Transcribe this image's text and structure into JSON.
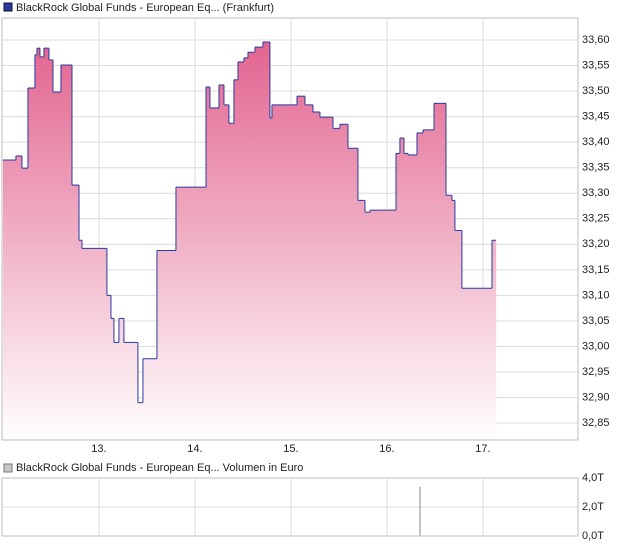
{
  "chart_data": [
    {
      "type": "step",
      "xlim": [
        11.99,
        17.99
      ],
      "xticks": [
        {
          "value": 13,
          "label": "13."
        },
        {
          "value": 14,
          "label": "14."
        },
        {
          "value": 15,
          "label": "15."
        },
        {
          "value": 16,
          "label": "16."
        },
        {
          "value": 17,
          "label": "17."
        }
      ],
      "ylim": [
        32.817,
        33.643
      ],
      "yticks": [
        {
          "value": 33.6,
          "label": "33,60"
        },
        {
          "value": 33.55,
          "label": "33,55"
        },
        {
          "value": 33.5,
          "label": "33,50"
        },
        {
          "value": 33.45,
          "label": "33,45"
        },
        {
          "value": 33.4,
          "label": "33,40"
        },
        {
          "value": 33.35,
          "label": "33,35"
        },
        {
          "value": 33.3,
          "label": "33,30"
        },
        {
          "value": 33.25,
          "label": "33,25"
        },
        {
          "value": 33.2,
          "label": "33,20"
        },
        {
          "value": 33.15,
          "label": "33,15"
        },
        {
          "value": 33.1,
          "label": "33,10"
        },
        {
          "value": 33.05,
          "label": "33,05"
        },
        {
          "value": 33.0,
          "label": "33,00"
        },
        {
          "value": 32.95,
          "label": "32,95"
        },
        {
          "value": 32.9,
          "label": "32,90"
        },
        {
          "value": 32.85,
          "label": "32,85"
        }
      ],
      "grid": true,
      "x": [
        12.0,
        12.135,
        12.198,
        12.26,
        12.333,
        12.354,
        12.385,
        12.427,
        12.479,
        12.521,
        12.604,
        12.719,
        12.792,
        12.823,
        13.083,
        13.125,
        13.156,
        13.208,
        13.26,
        13.406,
        13.458,
        13.604,
        13.802,
        14.115,
        14.156,
        14.25,
        14.302,
        14.354,
        14.406,
        14.448,
        14.51,
        14.552,
        14.625,
        14.708,
        14.781,
        14.802,
        15.063,
        15.146,
        15.229,
        15.302,
        15.438,
        15.51,
        15.594,
        15.698,
        15.771,
        15.823,
        16.094,
        16.135,
        16.177,
        16.219,
        16.313,
        16.375,
        16.49,
        16.615,
        16.677,
        16.708,
        16.781,
        17.094,
        17.135
      ],
      "series": [
        {
          "name": "BlackRock Global Funds - European Eq... (Frankfurt)",
          "color": "#2a3aa0",
          "values": [
            33.365,
            33.373,
            33.349,
            33.506,
            33.571,
            33.584,
            33.567,
            33.584,
            33.561,
            33.498,
            33.551,
            33.316,
            33.208,
            33.192,
            33.1,
            33.055,
            33.008,
            33.055,
            33.008,
            32.89,
            32.976,
            33.188,
            33.312,
            33.508,
            33.467,
            33.512,
            33.473,
            33.437,
            33.522,
            33.557,
            33.565,
            33.576,
            33.586,
            33.596,
            33.447,
            33.473,
            33.49,
            33.473,
            33.459,
            33.449,
            33.427,
            33.435,
            33.388,
            33.286,
            33.263,
            33.267,
            33.378,
            33.408,
            33.378,
            33.375,
            33.418,
            33.424,
            33.476,
            33.296,
            33.286,
            33.227,
            33.114,
            33.208,
            33.208
          ]
        }
      ]
    },
    {
      "type": "bar",
      "ylim": [
        0,
        4
      ],
      "yticks": [
        {
          "value": 4,
          "label": "4,0T"
        },
        {
          "value": 2,
          "label": "2,0T"
        },
        {
          "value": 0,
          "label": "0,0T"
        }
      ],
      "grid": true,
      "x": [
        16.344
      ],
      "series": [
        {
          "name": "BlackRock Global Funds - European Eq... Volumen in Euro",
          "color": "#b0b0b0",
          "values": [
            3.4
          ]
        }
      ]
    }
  ]
}
